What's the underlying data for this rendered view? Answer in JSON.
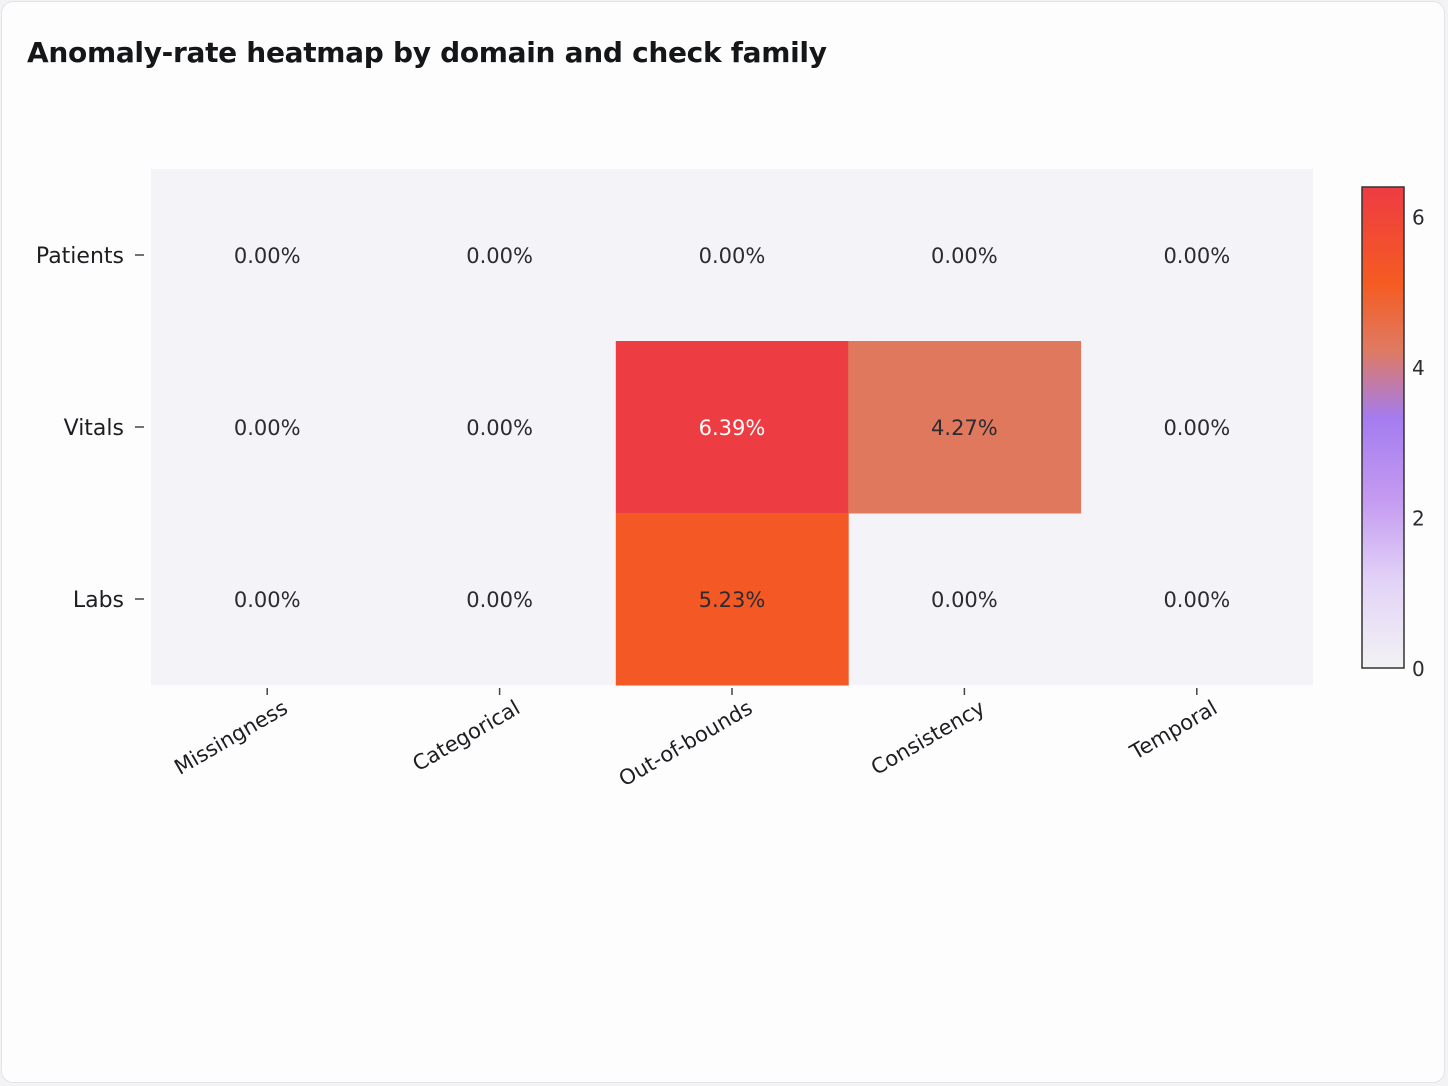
{
  "title": "Anomaly-rate heatmap by domain and check family",
  "chart_data": {
    "type": "heatmap",
    "title": "Anomaly-rate heatmap by domain and check family",
    "x_categories": [
      "Missingness",
      "Categorical",
      "Out-of-bounds",
      "Consistency",
      "Temporal"
    ],
    "y_categories": [
      "Patients",
      "Vitals",
      "Labs"
    ],
    "values": [
      [
        0,
        0,
        0,
        0,
        0
      ],
      [
        0,
        0,
        6.39,
        4.27,
        0
      ],
      [
        0,
        0,
        5.23,
        0,
        0
      ]
    ],
    "cell_labels": [
      [
        "0.00%",
        "0.00%",
        "0.00%",
        "0.00%",
        "0.00%"
      ],
      [
        "0.00%",
        "0.00%",
        "6.39%",
        "4.27%",
        "0.00%"
      ],
      [
        "0.00%",
        "0.00%",
        "5.23%",
        "0.00%",
        "0.00%"
      ]
    ],
    "unit": "%",
    "colorbar": {
      "range": [
        0,
        6.39
      ],
      "ticks": [
        "0",
        "2",
        "4",
        "6"
      ],
      "tick_values": [
        0,
        2,
        4,
        6
      ],
      "colorscale": [
        [
          0.0,
          "#f2f2f4"
        ],
        [
          0.18,
          "#e2d3f7"
        ],
        [
          0.35,
          "#c49af1"
        ],
        [
          0.52,
          "#a47cef"
        ],
        [
          0.66,
          "#df7a62"
        ],
        [
          0.8,
          "#f55b22"
        ],
        [
          1.0,
          "#ee3c43"
        ]
      ]
    },
    "background_color": "#f4f4f8",
    "xlabel": "",
    "ylabel": ""
  }
}
